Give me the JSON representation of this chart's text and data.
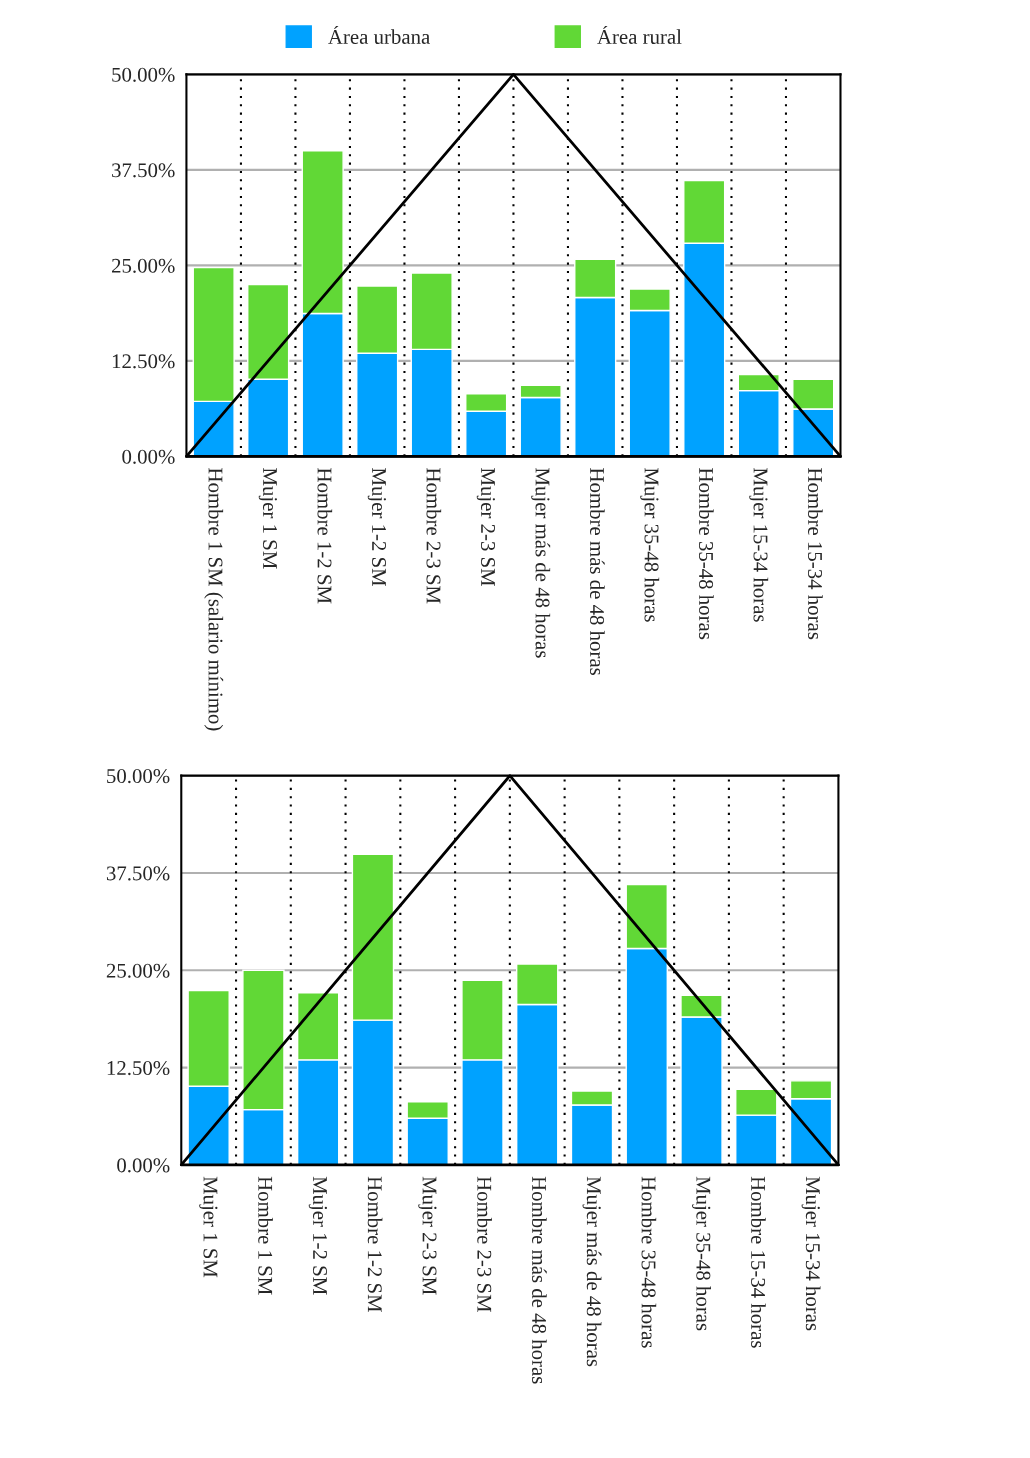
{
  "chart_data": [
    {
      "type": "bar",
      "stacked": true,
      "legend": "top",
      "grid": true,
      "categories": [
        "Hombre 1 SM (salario mínimo)",
        "Mujer 1 SM",
        "Hombre 1-2 SM",
        "Mujer 1-2 SM",
        "Hombre 2-3 SM",
        "Mujer 2-3 SM",
        "Mujer más de 48 horas",
        "Hombre más de 48 horas",
        "Mujer 35-48 horas",
        "Hombre 35-48 horas",
        "Mujer 15-34 horas",
        "Hombre 15-34 horas"
      ],
      "series": [
        {
          "name": "Área urbana",
          "color": "#00a2ff",
          "values": [
            7.2,
            10.1,
            18.7,
            13.5,
            14.0,
            5.9,
            7.7,
            20.8,
            19.1,
            27.9,
            8.6,
            6.2
          ]
        },
        {
          "name": "Área rural",
          "color": "#61d836",
          "values": [
            17.5,
            12.4,
            21.3,
            8.8,
            10.0,
            2.3,
            1.6,
            5.0,
            2.8,
            8.2,
            2.1,
            3.9
          ]
        }
      ],
      "ylim": [
        0,
        50
      ],
      "yticks": [
        {
          "value": 0,
          "label": "0.00%"
        },
        {
          "value": 12.5,
          "label": "12.50%"
        },
        {
          "value": 25,
          "label": "25.00%"
        },
        {
          "value": 37.5,
          "label": "37.50%"
        },
        {
          "value": 50,
          "label": "50.00%"
        }
      ]
    },
    {
      "type": "bar",
      "stacked": true,
      "grid": true,
      "categories": [
        "Mujer 1 SM",
        "Hombre 1 SM",
        "Mujer 1-2 SM",
        "Hombre 1-2 SM",
        "Mujer 2-3 SM",
        "Hombre 2-3 SM",
        "Hombre más de 48 horas",
        "Mujer más de 48 horas",
        "Hombre 35-48 horas",
        "Mujer 35-48 horas",
        "Hombre 15-34 horas",
        "Mujer 15-34 horas"
      ],
      "series": [
        {
          "name": "Área urbana",
          "color": "#00a2ff",
          "values": [
            10.1,
            7.1,
            13.5,
            18.6,
            6.0,
            13.5,
            20.6,
            7.7,
            27.8,
            19.0,
            6.4,
            8.5
          ]
        },
        {
          "name": "Área rural",
          "color": "#61d836",
          "values": [
            12.3,
            17.9,
            8.6,
            21.3,
            2.1,
            10.2,
            5.2,
            1.8,
            8.2,
            2.8,
            3.3,
            2.3
          ]
        }
      ],
      "ylim": [
        0,
        50
      ],
      "yticks": [
        {
          "value": 0,
          "label": "0.00%"
        },
        {
          "value": 12.5,
          "label": "12.50%"
        },
        {
          "value": 25,
          "label": "25.00%"
        },
        {
          "value": 37.5,
          "label": "37.50%"
        },
        {
          "value": 50,
          "label": "50.00%"
        }
      ]
    }
  ]
}
